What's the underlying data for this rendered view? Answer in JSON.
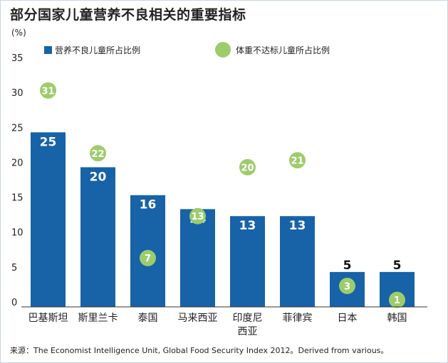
{
  "title": "部分国家儿童营养不良相关的重要指标",
  "source": "来源：The Economist Intelligence Unit, Global Food Security Index 2012。Derived from various。",
  "chart_data": {
    "type": "bar",
    "ylabel": "(%)",
    "ylim": [
      0,
      35
    ],
    "yticks": [
      0,
      5,
      10,
      15,
      20,
      25,
      30,
      35
    ],
    "categories": [
      [
        "巴基斯坦"
      ],
      [
        "斯里兰卡"
      ],
      [
        "泰国"
      ],
      [
        "马来西亚"
      ],
      [
        "印度尼",
        "西亚"
      ],
      [
        "菲律宾"
      ],
      [
        "日本"
      ],
      [
        "韩国"
      ]
    ],
    "series": [
      {
        "name": "营养不良儿童所占比例",
        "type": "bar",
        "color": "#1862a8",
        "values": [
          25,
          20,
          16,
          14,
          13,
          13,
          5,
          5
        ]
      },
      {
        "name": "体重不达标儿童所占比例",
        "type": "dot",
        "color": "#9dcc6c",
        "values": [
          31,
          22,
          7,
          13,
          20,
          21,
          3,
          1
        ]
      }
    ],
    "legend": "top"
  }
}
